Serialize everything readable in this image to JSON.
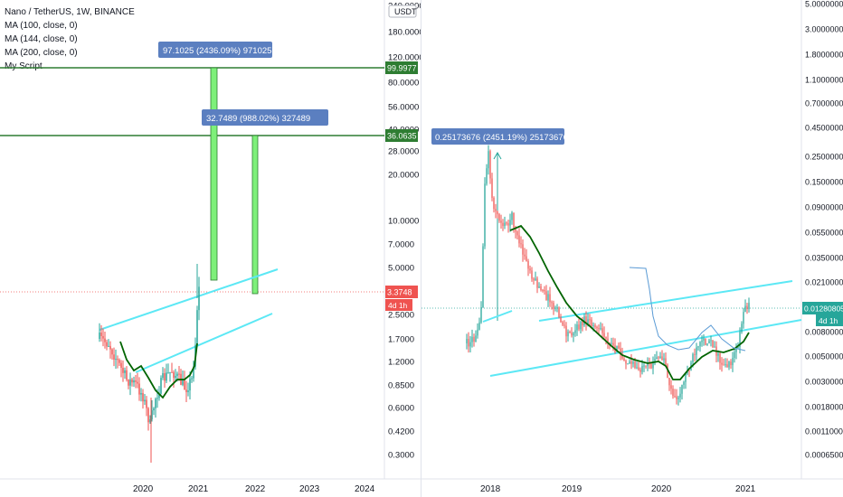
{
  "chart_data": [
    {
      "type": "candlestick",
      "legend": [
        "Nano / TetherUS, 1W, BINANCE",
        "MA (100, close, 0)",
        "MA (144, close, 0)",
        "MA (200, close, 0)",
        "My Script"
      ],
      "price_axis": {
        "scale": "log",
        "currency": "USDT",
        "ticks": [
          "240.0000",
          "180.0000",
          "120.0000",
          "80.0000",
          "56.0000",
          "40.0000",
          "28.0000",
          "20.0000",
          "10.0000",
          "7.0000",
          "5.0000",
          "3.3748",
          "2.5000",
          "1.7000",
          "1.2000",
          "0.8500",
          "0.6000",
          "0.4200",
          "0.3000"
        ]
      },
      "time_axis": {
        "ticks": [
          "2020",
          "2021",
          "2022",
          "2023",
          "2024"
        ]
      },
      "last_price": {
        "value": "3.3748",
        "countdown": "4d 1h"
      },
      "horizontal_levels": [
        "99.9977",
        "36.0635"
      ],
      "measure_labels": [
        "97.1025 (2436.09%) 971025",
        "32.7489 (988.02%) 327489"
      ],
      "colors": {
        "up": "#26a69a",
        "down": "#ef5350",
        "ma": "#006400",
        "channel": "#5ce8f5",
        "level": "#2e7d32",
        "measure_bar": "#7ef07a",
        "label_bg": "#5b7fc0"
      }
    },
    {
      "type": "candlestick",
      "price_axis": {
        "scale": "log",
        "ticks": [
          "5.00000000",
          "3.00000000",
          "1.80000000",
          "1.10000000",
          "0.70000000",
          "0.45000000",
          "0.25000000",
          "0.15000000",
          "0.09000000",
          "0.05500000",
          "0.03500000",
          "0.02100000",
          "0.01280805",
          "0.00800000",
          "0.00500000",
          "0.00300000",
          "0.00180000",
          "0.00110000",
          "0.00065000"
        ]
      },
      "time_axis": {
        "ticks": [
          "2018",
          "2019",
          "2020",
          "2021"
        ]
      },
      "last_price": {
        "value": "0.01280805",
        "countdown": "4d 1h"
      },
      "measure_labels": [
        "0.25173676 (2451.19%) 25173676"
      ],
      "colors": {
        "up": "#26a69a",
        "down": "#ef5350",
        "ma": "#006400",
        "ma2": "#5b9bd5",
        "channel": "#5ce8f5",
        "label_bg": "#5b7fc0"
      }
    }
  ]
}
